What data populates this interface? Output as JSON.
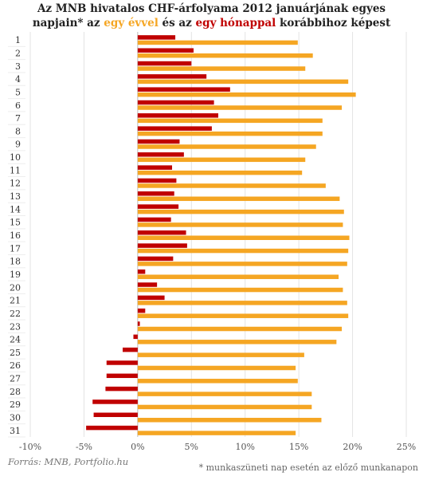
{
  "title": {
    "line1": "Az MNB hivatalos CHF-árfolyama 2012 januárjának egyes",
    "line2_a": "napjain* az ",
    "line2_orange": "egy évvel",
    "line2_b": " és az ",
    "line2_red": "egy hónappal",
    "line2_c": " korábbihoz képest"
  },
  "source": "Forrás: MNB, Portfolio.hu",
  "footnote": "* munkaszüneti nap esetén az előző munkanapon",
  "colors": {
    "year": "#f5a623",
    "month": "#c00000"
  },
  "chart_data": {
    "type": "bar",
    "orientation": "horizontal",
    "categories": [
      "1",
      "2",
      "3",
      "4",
      "5",
      "6",
      "7",
      "8",
      "9",
      "10",
      "11",
      "12",
      "13",
      "14",
      "15",
      "16",
      "17",
      "18",
      "19",
      "20",
      "21",
      "22",
      "23",
      "24",
      "25",
      "26",
      "27",
      "28",
      "29",
      "30",
      "31"
    ],
    "series": [
      {
        "name": "egy hónappal",
        "color": "#c00000",
        "values": [
          3.5,
          5.2,
          5.0,
          6.4,
          8.6,
          7.1,
          7.5,
          6.9,
          3.9,
          4.3,
          3.2,
          3.6,
          3.4,
          3.8,
          3.1,
          4.5,
          4.6,
          3.3,
          0.7,
          1.8,
          2.5,
          0.7,
          0.2,
          -0.4,
          -1.4,
          -2.9,
          -2.9,
          -3.0,
          -4.2,
          -4.1,
          -4.8
        ]
      },
      {
        "name": "egy évvel",
        "color": "#f5a623",
        "values": [
          14.9,
          16.3,
          15.6,
          19.6,
          20.3,
          19.0,
          17.2,
          17.2,
          16.6,
          15.6,
          15.3,
          17.5,
          18.8,
          19.2,
          19.1,
          19.7,
          19.6,
          19.5,
          18.7,
          19.1,
          19.5,
          19.6,
          19.0,
          18.5,
          15.5,
          14.7,
          14.9,
          16.2,
          16.2,
          17.1,
          14.7
        ]
      }
    ],
    "xlim": [
      -10,
      25
    ],
    "xticks": [
      -10,
      -5,
      0,
      5,
      10,
      15,
      20,
      25
    ],
    "xtick_labels": [
      "-10%",
      "-5%",
      "0%",
      "5%",
      "10%",
      "15%",
      "20%",
      "25%"
    ],
    "grid": "vertical"
  }
}
